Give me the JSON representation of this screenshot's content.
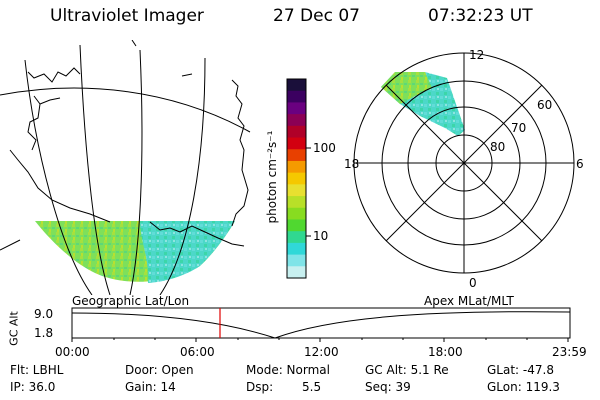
{
  "header": {
    "title": "Ultraviolet Imager",
    "date": "27 Dec 07",
    "time": "07:32:23 UT"
  },
  "colorbar": {
    "unit_label": "photon cm⁻²s⁻¹",
    "ticks": [
      "100",
      "10"
    ],
    "colors": [
      "#1a0f3a",
      "#3b0060",
      "#6a0080",
      "#8b0055",
      "#b00028",
      "#d20010",
      "#e84000",
      "#f59a00",
      "#f5c800",
      "#e8e030",
      "#b8e028",
      "#88dc20",
      "#50d830",
      "#30d890",
      "#30d8d8",
      "#80e4e8",
      "#c8f0f0"
    ]
  },
  "polar": {
    "labels": {
      "top": "12",
      "bottom": "0",
      "left": "18",
      "right": "6"
    },
    "rings": [
      "60",
      "70",
      "80"
    ]
  },
  "timeline": {
    "left_label": "Geographic Lat/Lon",
    "right_label": "Apex MLat/MLT",
    "yaxis_label": "GC Alt",
    "y_high": "9.0",
    "y_low": "1.8",
    "x_ticks": [
      "00:00",
      "06:00",
      "12:00",
      "18:00",
      "23:59"
    ],
    "marker_color": "#e00000"
  },
  "footer": {
    "flt": "Flt: LBHL",
    "ip": "IP: 36.0",
    "door": "Door: Open",
    "gain": "Gain: 14",
    "mode": "Mode: Normal",
    "dsp_label": "Dsp:",
    "dsp_value": "5.5",
    "gcalt": "GC Alt: 5.1 Re",
    "seq": "Seq: 39",
    "glat": "GLat: -47.8",
    "glon": "GLon: 119.3"
  }
}
